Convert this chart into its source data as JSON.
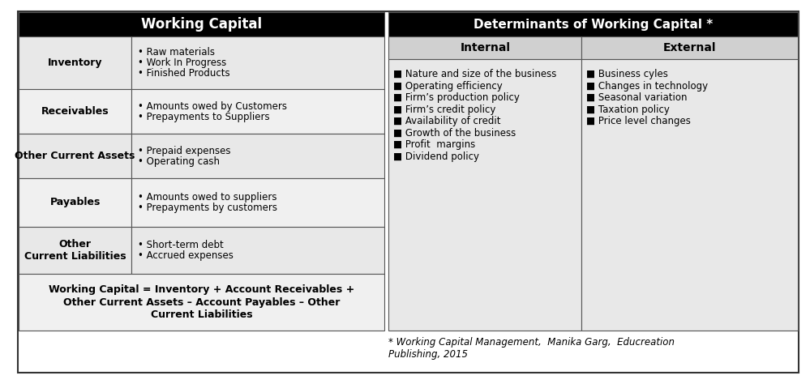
{
  "header_bg": "#000000",
  "header_fg": "#ffffff",
  "subheader_bg": "#d0d0d0",
  "subheader_fg": "#000000",
  "cell_bg_light": "#e8e8e8",
  "cell_bg_white": "#f0f0f0",
  "border_color": "#555555",
  "outer_border_color": "#333333",
  "left_header": "Working Capital",
  "right_header": "Determinants of Working Capital *",
  "wc_rows": [
    {
      "label": "Inventory",
      "items": [
        "• Raw materials",
        "• Work In Progress",
        "• Finished Products"
      ]
    },
    {
      "label": "Receivables",
      "items": [
        "• Amounts owed by Customers",
        "• Prepayments to Suppliers"
      ]
    },
    {
      "label": "Other Current Assets",
      "items": [
        "• Prepaid expenses",
        "• Operating cash"
      ]
    },
    {
      "label": "Payables",
      "items": [
        "• Amounts owed to suppliers",
        "• Prepayments by customers"
      ]
    },
    {
      "label": "Other\nCurrent Liabilities",
      "items": [
        "• Short-term debt",
        "• Accrued expenses"
      ]
    }
  ],
  "wc_formula": "Working Capital = Inventory + Account Receivables +\nOther Current Assets – Account Payables – Other\nCurrent Liabilities",
  "det_internal_header": "Internal",
  "det_external_header": "External",
  "det_internal_items": [
    "■ Nature and size of the business",
    "■ Operating efficiency",
    "■ Firm’s production policy",
    "■ Firm’s credit policy",
    "■ Availability of credit",
    "■ Growth of the business",
    "■ Profit  margins",
    "■ Dividend policy"
  ],
  "det_external_items": [
    "■ Business cyles",
    "■ Changes in technology",
    "■ Seasonal variation",
    "■ Taxation policy",
    "■ Price level changes"
  ],
  "footnote": "* Working Capital Management,  Manika Garg,  Educreation\nPublishing, 2015",
  "bg_color": "#ffffff"
}
